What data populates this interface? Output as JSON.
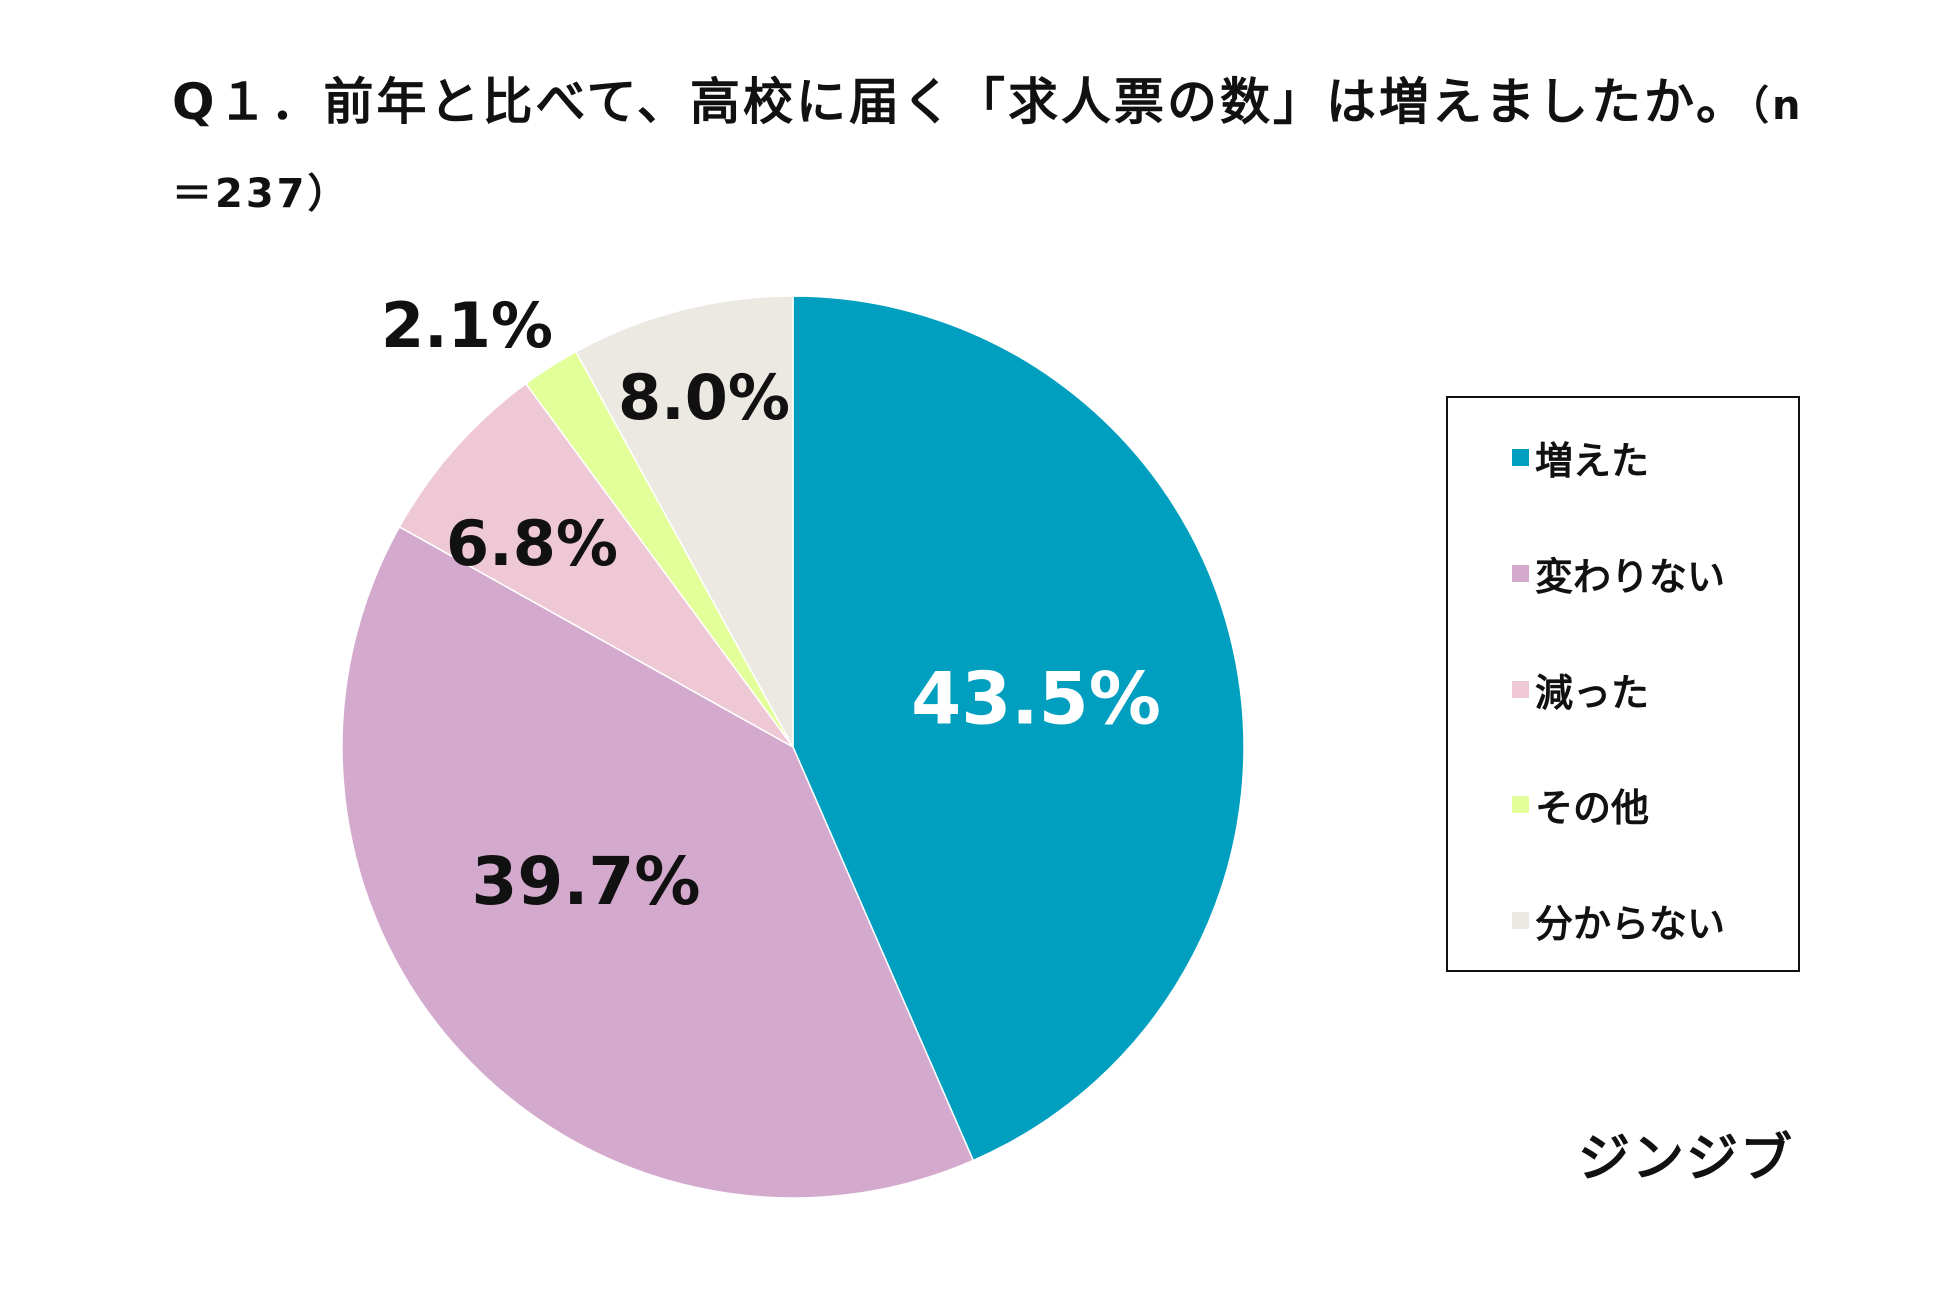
{
  "title_main": "Q１．前年と比べて、高校に届く「求人票の数」は増えましたか。",
  "title_n": "（n＝237）",
  "brand": "ジンジブ",
  "chart_data": {
    "type": "pie",
    "title": "Q１．前年と比べて、高校に届く「求人票の数」は増えましたか。（n＝237）",
    "start_angle_deg": 0,
    "direction": "clockwise",
    "legend_position": "right",
    "slices": [
      {
        "label": "増えた",
        "value": 43.5,
        "display": "43.5%",
        "color": "#009fbf",
        "label_color": "#ffffff"
      },
      {
        "label": "変わりない",
        "value": 39.7,
        "display": "39.7%",
        "color": "#d3a9cd",
        "label_color": "#111111"
      },
      {
        "label": "減った",
        "value": 6.8,
        "display": "6.8%",
        "color": "#efc8d5",
        "label_color": "#111111"
      },
      {
        "label": "その他",
        "value": 2.1,
        "display": "2.1%",
        "color": "#e3ff9a",
        "label_color": "#111111"
      },
      {
        "label": "分からない",
        "value": 8.0,
        "display": "8.0%",
        "color": "#ece8e2",
        "label_color": "#111111"
      }
    ]
  }
}
